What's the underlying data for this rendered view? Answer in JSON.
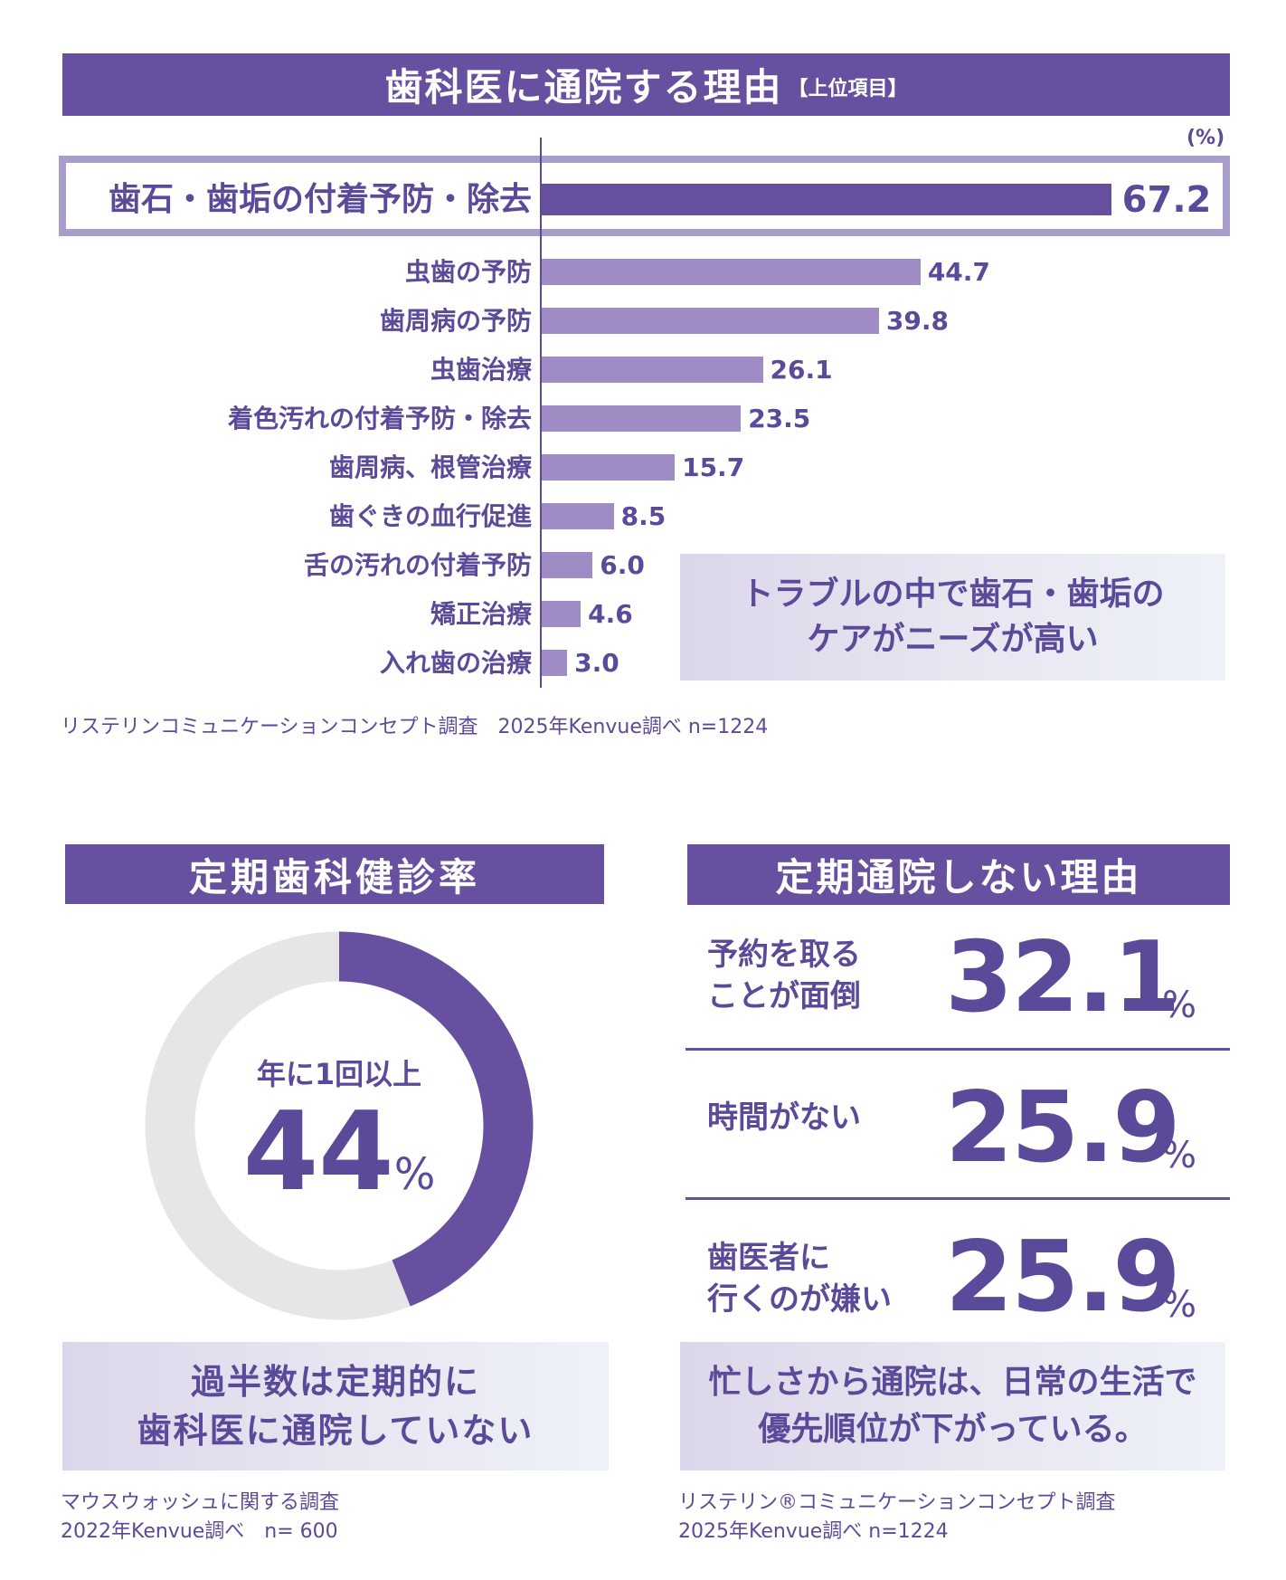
{
  "top_section": {
    "title": "歯科医に通院する理由",
    "title_sub": "【上位項目】",
    "unit": "(%)",
    "highlight_callout": [
      "トラブルの中で歯石・歯垢の",
      "ケアがニーズが高い"
    ],
    "footnote": "リステリンコミュニケーションコンセプト調査　2025年Kenvue調べ n=1224"
  },
  "chart_data": [
    {
      "type": "bar",
      "orientation": "horizontal",
      "title": "歯科医に通院する理由【上位項目】",
      "unit": "%",
      "categories": [
        "歯石・歯垢の付着予防・除去",
        "虫歯の予防",
        "歯周病の予防",
        "虫歯治療",
        "着色汚れの付着予防・除去",
        "歯周病、根管治療",
        "歯ぐきの血行促進",
        "舌の汚れの付着予防",
        "矯正治療",
        "入れ歯の治療"
      ],
      "values": [
        67.2,
        44.7,
        39.8,
        26.1,
        23.5,
        15.7,
        8.5,
        6.0,
        4.6,
        3.0
      ],
      "value_labels": [
        "67.2",
        "44.7",
        "39.8",
        "26.1",
        "23.5",
        "15.7",
        "8.5",
        "6.0",
        "4.6",
        "3.0"
      ],
      "highlighted_category": "歯石・歯垢の付着予防・除去",
      "grid": false,
      "colors": {
        "highlight": "#66509f",
        "others": "#a08cc4"
      }
    },
    {
      "type": "pie",
      "variant": "donut",
      "title": "定期歯科健診率",
      "categories": [
        "年に1回以上",
        "その他"
      ],
      "values": [
        44,
        56
      ],
      "center_label": "年に1回以上 44%",
      "colors": {
        "年に1回以上": "#66509f",
        "その他": "#e6e6e8"
      }
    },
    {
      "type": "table",
      "title": "定期通院しない理由",
      "rows": [
        {
          "reason": "予約を取ることが面倒",
          "value": 32.1
        },
        {
          "reason": "時間がない",
          "value": 25.9
        },
        {
          "reason": "歯医者に行くのが嫌い",
          "value": 25.9
        }
      ],
      "unit": "%"
    }
  ],
  "bars": [
    {
      "label": "歯石・歯垢の付着予防・除去",
      "value": 67.2,
      "display": "67.2"
    },
    {
      "label": "虫歯の予防",
      "value": 44.7,
      "display": "44.7"
    },
    {
      "label": "歯周病の予防",
      "value": 39.8,
      "display": "39.8"
    },
    {
      "label": "虫歯治療",
      "value": 26.1,
      "display": "26.1"
    },
    {
      "label": "着色汚れの付着予防・除去",
      "value": 23.5,
      "display": "23.5"
    },
    {
      "label": "歯周病、根管治療",
      "value": 15.7,
      "display": "15.7"
    },
    {
      "label": "歯ぐきの血行促進",
      "value": 8.5,
      "display": "8.5"
    },
    {
      "label": "舌の汚れの付着予防",
      "value": 6.0,
      "display": "6.0"
    },
    {
      "label": "矯正治療",
      "value": 4.6,
      "display": "4.6"
    },
    {
      "label": "入れ歯の治療",
      "value": 3.0,
      "display": "3.0"
    }
  ],
  "left_section": {
    "title": "定期歯科健診率",
    "donut_caption": "年に1回以上",
    "donut_value": "44",
    "donut_percent_sign": "%",
    "donut_percent": 44,
    "callout": [
      "過半数は定期的に",
      "歯科医に通院していない"
    ],
    "footnote": [
      "マウスウォッシュに関する調査",
      "2022年Kenvue調べ　n= 600"
    ]
  },
  "right_section": {
    "title": "定期通院しない理由",
    "reasons": [
      {
        "label_lines": [
          "予約を取る",
          "ことが面倒"
        ],
        "value": "32.1",
        "unit": "%"
      },
      {
        "label_lines": [
          "時間がない"
        ],
        "value": "25.9",
        "unit": "%"
      },
      {
        "label_lines": [
          "歯医者に",
          "行くのが嫌い"
        ],
        "value": "25.9",
        "unit": "%"
      }
    ],
    "callout": [
      "忙しさから通院は、日常の生活で",
      "優先順位が下がっている。"
    ],
    "footnote": [
      "リステリン®コミュニケーションコンセプト調査",
      "2025年Kenvue調べ n=1224"
    ]
  },
  "colors": {
    "primary": "#66509f",
    "bar_light": "#a08cc4",
    "highlight_border": "#a99dcb",
    "donut_rest": "#e6e6e8",
    "text": "#5b4a99"
  }
}
